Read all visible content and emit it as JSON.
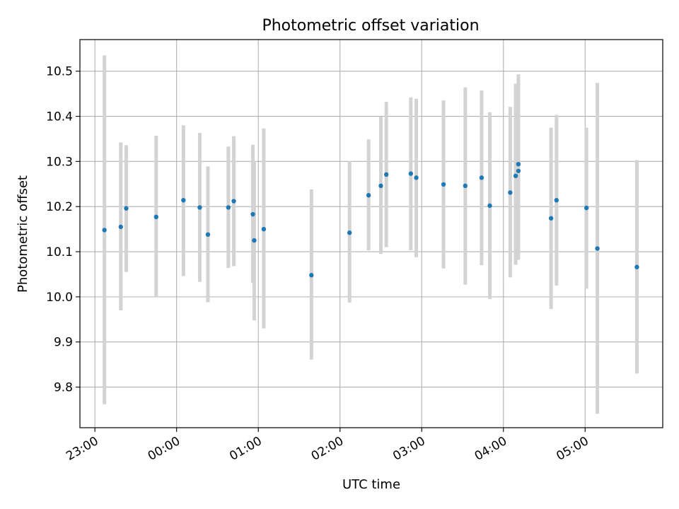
{
  "chart_data": {
    "type": "scatter",
    "title": "Photometric offset variation",
    "xlabel": "UTC time",
    "ylabel": "Photometric offset",
    "x_ticks": [
      "23:00",
      "00:00",
      "01:00",
      "02:00",
      "03:00",
      "04:00",
      "05:00"
    ],
    "y_ticks": [
      "9.8",
      "9.9",
      "10.0",
      "10.1",
      "10.2",
      "10.3",
      "10.4",
      "10.5"
    ],
    "xlim": [
      "22:49",
      "05:57"
    ],
    "ylim": [
      9.71,
      10.57
    ],
    "grid": true,
    "colors": {
      "point": "#1f77b4",
      "errorbar": "#d3d3d3",
      "grid": "#b0b0b0"
    },
    "points": [
      {
        "time": "23:07",
        "y": 10.148,
        "low": 9.762,
        "high": 10.535
      },
      {
        "time": "23:19",
        "y": 10.155,
        "low": 9.97,
        "high": 10.342
      },
      {
        "time": "23:23",
        "y": 10.196,
        "low": 10.055,
        "high": 10.336
      },
      {
        "time": "23:45",
        "y": 10.177,
        "low": 10.0,
        "high": 10.357
      },
      {
        "time": "00:05",
        "y": 10.214,
        "low": 10.046,
        "high": 10.38
      },
      {
        "time": "00:17",
        "y": 10.198,
        "low": 10.033,
        "high": 10.363
      },
      {
        "time": "00:23",
        "y": 10.138,
        "low": 9.988,
        "high": 10.289
      },
      {
        "time": "00:38",
        "y": 10.198,
        "low": 10.064,
        "high": 10.333
      },
      {
        "time": "00:42",
        "y": 10.212,
        "low": 10.068,
        "high": 10.356
      },
      {
        "time": "00:56",
        "y": 10.183,
        "low": 10.031,
        "high": 10.337
      },
      {
        "time": "00:57",
        "y": 10.125,
        "low": 9.948,
        "high": 10.301
      },
      {
        "time": "01:04",
        "y": 10.15,
        "low": 9.93,
        "high": 10.373
      },
      {
        "time": "01:39",
        "y": 10.048,
        "low": 9.861,
        "high": 10.238
      },
      {
        "time": "02:07",
        "y": 10.142,
        "low": 9.987,
        "high": 10.301
      },
      {
        "time": "02:21",
        "y": 10.225,
        "low": 10.103,
        "high": 10.349
      },
      {
        "time": "02:30",
        "y": 10.246,
        "low": 10.095,
        "high": 10.399
      },
      {
        "time": "02:34",
        "y": 10.271,
        "low": 10.11,
        "high": 10.432
      },
      {
        "time": "02:52",
        "y": 10.273,
        "low": 10.103,
        "high": 10.442
      },
      {
        "time": "02:56",
        "y": 10.264,
        "low": 10.088,
        "high": 10.439
      },
      {
        "time": "03:16",
        "y": 10.249,
        "low": 10.063,
        "high": 10.435
      },
      {
        "time": "03:32",
        "y": 10.246,
        "low": 10.027,
        "high": 10.464
      },
      {
        "time": "03:44",
        "y": 10.264,
        "low": 10.07,
        "high": 10.457
      },
      {
        "time": "03:50",
        "y": 10.202,
        "low": 9.995,
        "high": 10.409
      },
      {
        "time": "04:05",
        "y": 10.231,
        "low": 10.043,
        "high": 10.421
      },
      {
        "time": "04:09",
        "y": 10.268,
        "low": 10.071,
        "high": 10.472
      },
      {
        "time": "04:11",
        "y": 10.279,
        "low": 10.082,
        "high": 10.479
      },
      {
        "time": "04:11",
        "y": 10.294,
        "low": 10.095,
        "high": 10.493
      },
      {
        "time": "04:35",
        "y": 10.174,
        "low": 9.973,
        "high": 10.375
      },
      {
        "time": "04:39",
        "y": 10.214,
        "low": 10.025,
        "high": 10.403
      },
      {
        "time": "05:01",
        "y": 10.197,
        "low": 10.018,
        "high": 10.375
      },
      {
        "time": "05:09",
        "y": 10.107,
        "low": 9.741,
        "high": 10.474
      },
      {
        "time": "05:38",
        "y": 10.066,
        "low": 9.83,
        "high": 10.303
      }
    ]
  }
}
